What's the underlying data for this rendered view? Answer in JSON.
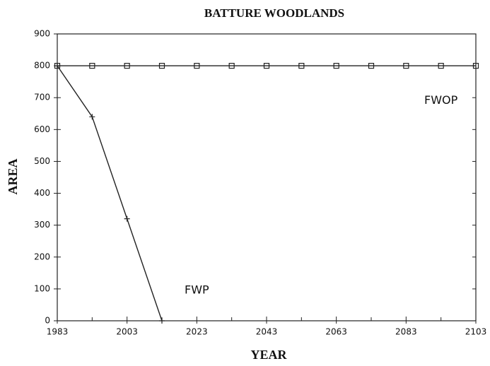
{
  "chart_data": {
    "type": "line",
    "title": "BATTURE WOODLANDS",
    "x_label": "YEAR",
    "y_label": "AREA",
    "x": [
      1983,
      1993,
      2003,
      2013,
      2023,
      2033,
      2043,
      2053,
      2063,
      2073,
      2083,
      2093,
      2103
    ],
    "series": [
      {
        "name": "FWOP",
        "color": "#222222",
        "marker": "square",
        "values": [
          800,
          800,
          800,
          800,
          800,
          800,
          800,
          800,
          800,
          800,
          800,
          800,
          800
        ]
      },
      {
        "name": "FWP",
        "color": "#222222",
        "marker": "plus",
        "values": [
          800,
          640,
          320,
          0,
          null,
          null,
          null,
          null,
          null,
          null,
          null,
          null,
          null
        ]
      }
    ],
    "xlim": [
      1983,
      2103
    ],
    "xticks": [
      1983,
      2003,
      2023,
      2043,
      2063,
      2083,
      2103
    ],
    "ylim": [
      0,
      900
    ],
    "yticks": [
      0,
      100,
      200,
      300,
      400,
      500,
      600,
      700,
      800,
      900
    ],
    "annotations": [
      {
        "text": "FWOP",
        "x": 2093,
        "y": 690
      },
      {
        "text": "FWP",
        "x": 2023,
        "y": 95
      }
    ]
  }
}
